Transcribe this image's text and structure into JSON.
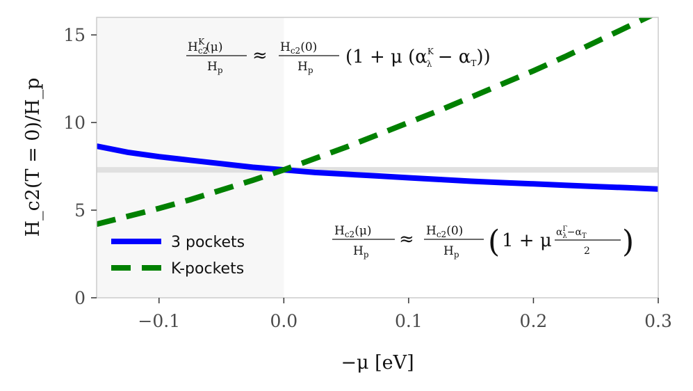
{
  "chart_data": {
    "type": "line",
    "xlabel": "−μ [eV]",
    "ylabel": "H_c2(T = 0)/H_p",
    "xlim": [
      -0.15,
      0.3
    ],
    "ylim": [
      0,
      16
    ],
    "xticks": [
      -0.1,
      0.0,
      0.1,
      0.2,
      0.3
    ],
    "xtick_labels": [
      "−0.1",
      "0.0",
      "0.1",
      "0.2",
      "0.3"
    ],
    "yticks": [
      0,
      5,
      10,
      15
    ],
    "ytick_labels": [
      "0",
      "5",
      "10",
      "15"
    ],
    "grid": false,
    "legend_position": "lower-left",
    "shaded_region": {
      "x_from": -0.15,
      "x_to": 0.0,
      "color": "#f7f7f7"
    },
    "reference_line": {
      "y": 7.3,
      "color": "#e0e0e0"
    },
    "series": [
      {
        "name": "3 pockets",
        "style": "solid",
        "color": "#0000ff",
        "x": [
          -0.15,
          -0.125,
          -0.1,
          -0.075,
          -0.05,
          -0.025,
          0.0,
          0.025,
          0.05,
          0.075,
          0.1,
          0.125,
          0.15,
          0.175,
          0.2,
          0.225,
          0.25,
          0.275,
          0.3
        ],
        "y": [
          8.65,
          8.3,
          8.05,
          7.85,
          7.65,
          7.45,
          7.3,
          7.15,
          7.05,
          6.95,
          6.85,
          6.75,
          6.65,
          6.57,
          6.5,
          6.42,
          6.35,
          6.28,
          6.2
        ]
      },
      {
        "name": "K-pockets",
        "style": "dashed",
        "color": "#008000",
        "x": [
          -0.15,
          -0.125,
          -0.1,
          -0.075,
          -0.05,
          -0.025,
          0.0,
          0.025,
          0.05,
          0.075,
          0.1,
          0.125,
          0.15,
          0.175,
          0.2,
          0.225,
          0.25,
          0.275,
          0.3
        ],
        "y": [
          4.2,
          4.65,
          5.1,
          5.6,
          6.15,
          6.7,
          7.3,
          7.95,
          8.6,
          9.3,
          10.0,
          10.7,
          11.45,
          12.2,
          12.95,
          13.75,
          14.6,
          15.45,
          16.3
        ]
      }
    ],
    "annotations": {
      "formula_top": {
        "lhs_num": "H",
        "lhs_num_sub": "c2",
        "lhs_num_sup": "K",
        "lhs_num_arg": "(μ)",
        "lhs_den": "H",
        "lhs_den_sub": "p",
        "approx": "≈",
        "rhs_num": "H",
        "rhs_num_sub": "c2",
        "rhs_num_arg": "(0)",
        "rhs_den": "H",
        "rhs_den_sub": "p",
        "paren_open": "(1 + μ (α",
        "alpha_sup": "K",
        "alpha_sub": "λ",
        "minus": " − α",
        "alpha_t_sub": "T",
        "paren_close": "))"
      },
      "formula_bottom": {
        "lhs_num": "H",
        "lhs_num_sub": "c2",
        "lhs_num_arg": "(μ)",
        "lhs_den": "H",
        "lhs_den_sub": "p",
        "approx": "≈",
        "rhs_num": "H",
        "rhs_num_sub": "c2",
        "rhs_num_arg": "(0)",
        "rhs_den": "H",
        "rhs_den_sub": "p",
        "one_plus": "1 + μ",
        "frac_num_a": "α",
        "frac_num_sup": "Γ",
        "frac_num_sub": "λ",
        "frac_num_b": "−α",
        "frac_num_b_sub": "T",
        "frac_den": "2"
      }
    }
  }
}
